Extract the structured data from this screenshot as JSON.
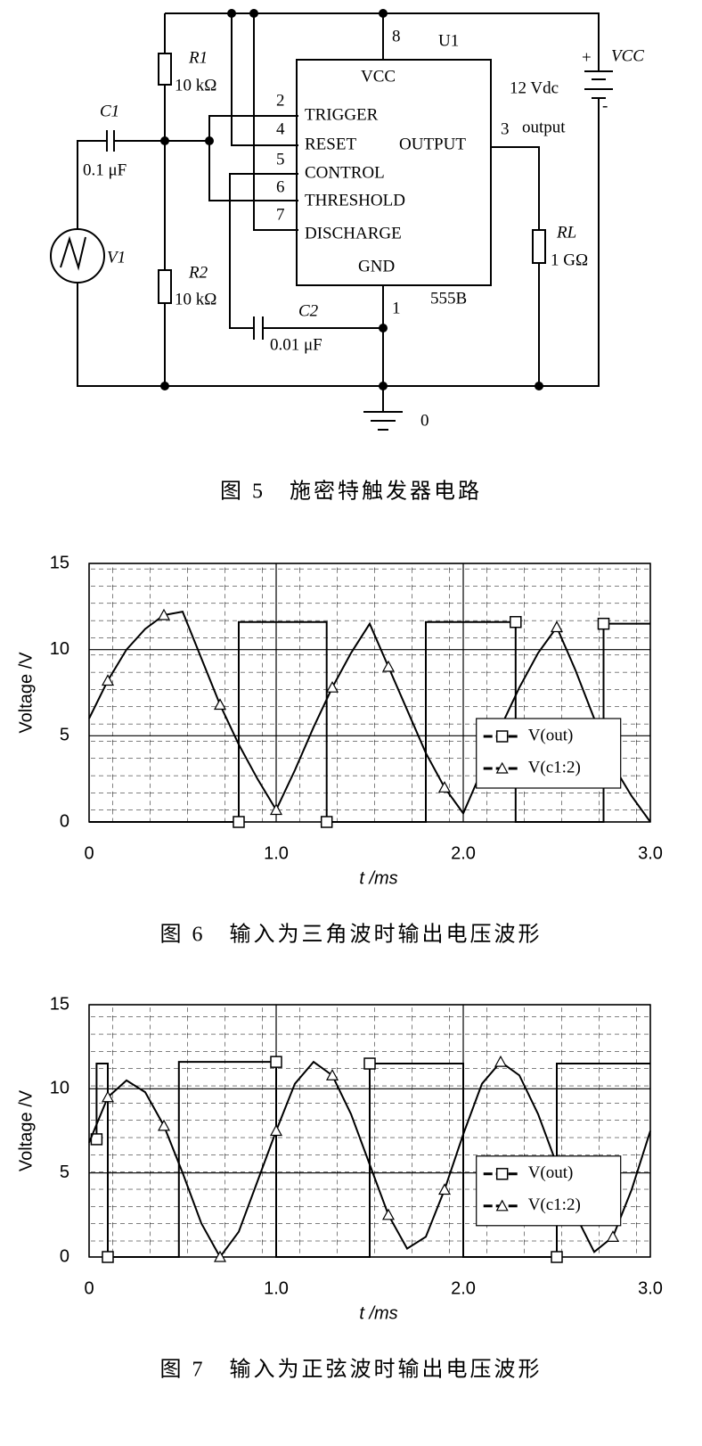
{
  "figure5": {
    "labels": {
      "pin8": "8",
      "u1": "U1",
      "vcc_pin": "VCC",
      "r1": "R1",
      "r1_value": "10 kΩ",
      "c1": "C1",
      "c1_value": "0.1 μF",
      "pin2": "2",
      "pin4": "4",
      "pin5": "5",
      "pin6": "6",
      "pin7": "7",
      "trigger": "TRIGGER",
      "reset": "RESET",
      "output_pin": "OUTPUT",
      "control": "CONTROL",
      "threshold": "THRESHOLD",
      "discharge": "DISCHARGE",
      "gnd": "GND",
      "pin3": "3",
      "output": "output",
      "plus": "+",
      "vcc_source": "VCC",
      "vcc_value": "12 Vdc",
      "minus": "-",
      "v1": "V1",
      "r2": "R2",
      "r2_value": "10 kΩ",
      "rl": "RL",
      "rl_value": "1 GΩ",
      "pin1": "1",
      "part": "555B",
      "c2": "C2",
      "c2_value": "0.01 μF",
      "ground": "0"
    },
    "caption": "图 5　施密特触发器电路"
  },
  "chart_data": [
    {
      "type": "line",
      "caption": "图 6　输入为三角波时输出电压波形",
      "xlabel": "t /ms",
      "ylabel": "Voltage /V",
      "xlim": [
        0,
        3
      ],
      "ylim": [
        0,
        15
      ],
      "xticks": [
        0,
        {
          "value": 1,
          "label": "1.0"
        },
        {
          "value": 2,
          "label": "2.0"
        },
        {
          "value": 3,
          "label": "3.0"
        }
      ],
      "yticks": [
        0,
        5,
        10,
        15
      ],
      "grid": true,
      "legend": "right",
      "series": [
        {
          "name": "V(out)",
          "color": "#000000",
          "marker": "square",
          "x": [
            0,
            0.8,
            0.8,
            1.27,
            1.27,
            1.8,
            1.8,
            2.28,
            2.28,
            2.75,
            2.75,
            3.0
          ],
          "values": [
            0,
            0,
            11.6,
            11.6,
            0,
            0,
            11.6,
            11.6,
            0,
            0,
            11.5,
            11.5
          ]
        },
        {
          "name": "V(c1:2)",
          "color": "#000000",
          "marker": "triangle",
          "x": [
            0,
            0.1,
            0.2,
            0.3,
            0.4,
            0.5,
            0.6,
            0.7,
            0.8,
            0.9,
            1.0,
            1.1,
            1.2,
            1.3,
            1.4,
            1.5,
            1.6,
            1.7,
            1.8,
            1.9,
            2.0,
            2.1,
            2.2,
            2.3,
            2.4,
            2.5,
            2.6,
            2.7,
            2.8,
            2.9,
            3.0
          ],
          "values": [
            6,
            8.2,
            10,
            11.2,
            12,
            12.2,
            9.5,
            6.8,
            4.5,
            2.5,
            0.7,
            3,
            5.5,
            7.8,
            9.8,
            11.5,
            9,
            6.5,
            4,
            2,
            0.5,
            3,
            5.5,
            7.8,
            9.8,
            11.3,
            8.8,
            6,
            3.3,
            1.5,
            0
          ]
        }
      ]
    },
    {
      "type": "line",
      "caption": "图 7　输入为正弦波时输出电压波形",
      "xlabel": "t /ms",
      "ylabel": "Voltage /V",
      "xlim": [
        0,
        3
      ],
      "ylim": [
        0,
        15
      ],
      "xticks": [
        0,
        {
          "value": 1,
          "label": "1.0"
        },
        {
          "value": 2,
          "label": "2.0"
        },
        {
          "value": 3,
          "label": "3.0"
        }
      ],
      "yticks": [
        0,
        5,
        10,
        15
      ],
      "grid": true,
      "legend": "right",
      "series": [
        {
          "name": "V(out)",
          "color": "#000000",
          "marker": "square",
          "x": [
            0,
            0.04,
            0.04,
            0.1,
            0.1,
            0.48,
            0.48,
            1.0,
            1.0,
            1.5,
            1.5,
            2.0,
            2.0,
            2.5,
            2.5,
            3.0
          ],
          "values": [
            7,
            7,
            11.5,
            11.5,
            0,
            0,
            11.6,
            11.6,
            0,
            0,
            11.5,
            11.5,
            0,
            0,
            11.5,
            11.5
          ]
        },
        {
          "name": "V(c1:2)",
          "color": "#000000",
          "marker": "triangle",
          "x": [
            0,
            0.1,
            0.2,
            0.3,
            0.4,
            0.5,
            0.6,
            0.7,
            0.8,
            0.9,
            1.0,
            1.1,
            1.2,
            1.3,
            1.4,
            1.5,
            1.6,
            1.7,
            1.8,
            1.9,
            2.0,
            2.1,
            2.2,
            2.3,
            2.4,
            2.5,
            2.6,
            2.7,
            2.8,
            2.9,
            3.0
          ],
          "values": [
            6.8,
            9.5,
            10.5,
            9.8,
            7.8,
            5,
            2,
            0,
            1.5,
            4.5,
            7.5,
            10.3,
            11.6,
            10.8,
            8.5,
            5.5,
            2.5,
            0.5,
            1.2,
            4,
            7.3,
            10.3,
            11.6,
            10.8,
            8.5,
            5.5,
            2.5,
            0.3,
            1.2,
            4,
            7.5
          ]
        }
      ]
    }
  ]
}
